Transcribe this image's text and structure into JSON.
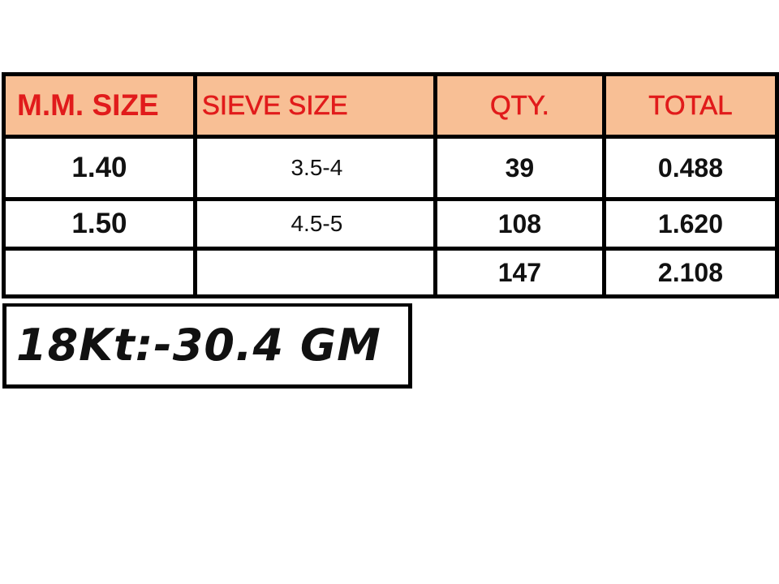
{
  "table": {
    "headers": [
      "M.M. SIZE",
      "SIEVE SIZE",
      "QTY.",
      "TOTAL"
    ],
    "rows": [
      {
        "mm_size": "1.40",
        "sieve_size": "3.5-4",
        "qty": "39",
        "total": "0.488"
      },
      {
        "mm_size": "1.50",
        "sieve_size": "4.5-5",
        "qty": "108",
        "total": "1.620"
      },
      {
        "mm_size": "",
        "sieve_size": "",
        "qty": "147",
        "total": "2.108"
      }
    ]
  },
  "gold_weight": "18Kt:-30.4 GM",
  "colors": {
    "header_bg": "#f8bf95",
    "header_text": "#e11b1b"
  }
}
